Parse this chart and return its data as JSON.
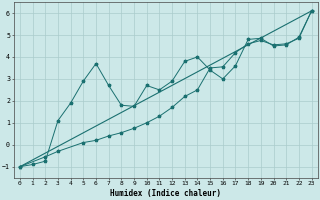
{
  "xlabel": "Humidex (Indice chaleur)",
  "xlim": [
    -0.5,
    23.5
  ],
  "ylim": [
    -1.5,
    6.5
  ],
  "xticks": [
    0,
    1,
    2,
    3,
    4,
    5,
    6,
    7,
    8,
    9,
    10,
    11,
    12,
    13,
    14,
    15,
    16,
    17,
    18,
    19,
    20,
    21,
    22,
    23
  ],
  "yticks": [
    -1,
    0,
    1,
    2,
    3,
    4,
    5,
    6
  ],
  "bg_color": "#cce8e8",
  "grid_color": "#aacccc",
  "line_color": "#1a7070",
  "line1_x": [
    0,
    1,
    2,
    3,
    4,
    5,
    6,
    7,
    8,
    9,
    10,
    11,
    12,
    13,
    14,
    15,
    16,
    17,
    18,
    19,
    20,
    21,
    22,
    23
  ],
  "line1_y": [
    -1.0,
    -0.9,
    -0.75,
    1.1,
    1.9,
    2.9,
    3.7,
    2.7,
    1.8,
    1.75,
    2.7,
    2.5,
    2.9,
    3.8,
    4.0,
    3.4,
    3.0,
    3.6,
    4.8,
    4.85,
    4.5,
    4.55,
    4.9,
    6.1
  ],
  "line2_x": [
    0,
    23
  ],
  "line2_y": [
    -1.0,
    6.1
  ],
  "line3_x": [
    0,
    2,
    3,
    5,
    6,
    7,
    8,
    9,
    10,
    11,
    12,
    13,
    14,
    15,
    16,
    17,
    18,
    19,
    20,
    21,
    22,
    23
  ],
  "line3_y": [
    -1.0,
    -0.55,
    -0.3,
    0.1,
    0.2,
    0.4,
    0.55,
    0.75,
    1.0,
    1.3,
    1.7,
    2.2,
    2.5,
    3.5,
    3.55,
    4.2,
    4.6,
    4.75,
    4.55,
    4.6,
    4.85,
    6.1
  ],
  "figsize": [
    3.2,
    2.0
  ],
  "dpi": 100
}
